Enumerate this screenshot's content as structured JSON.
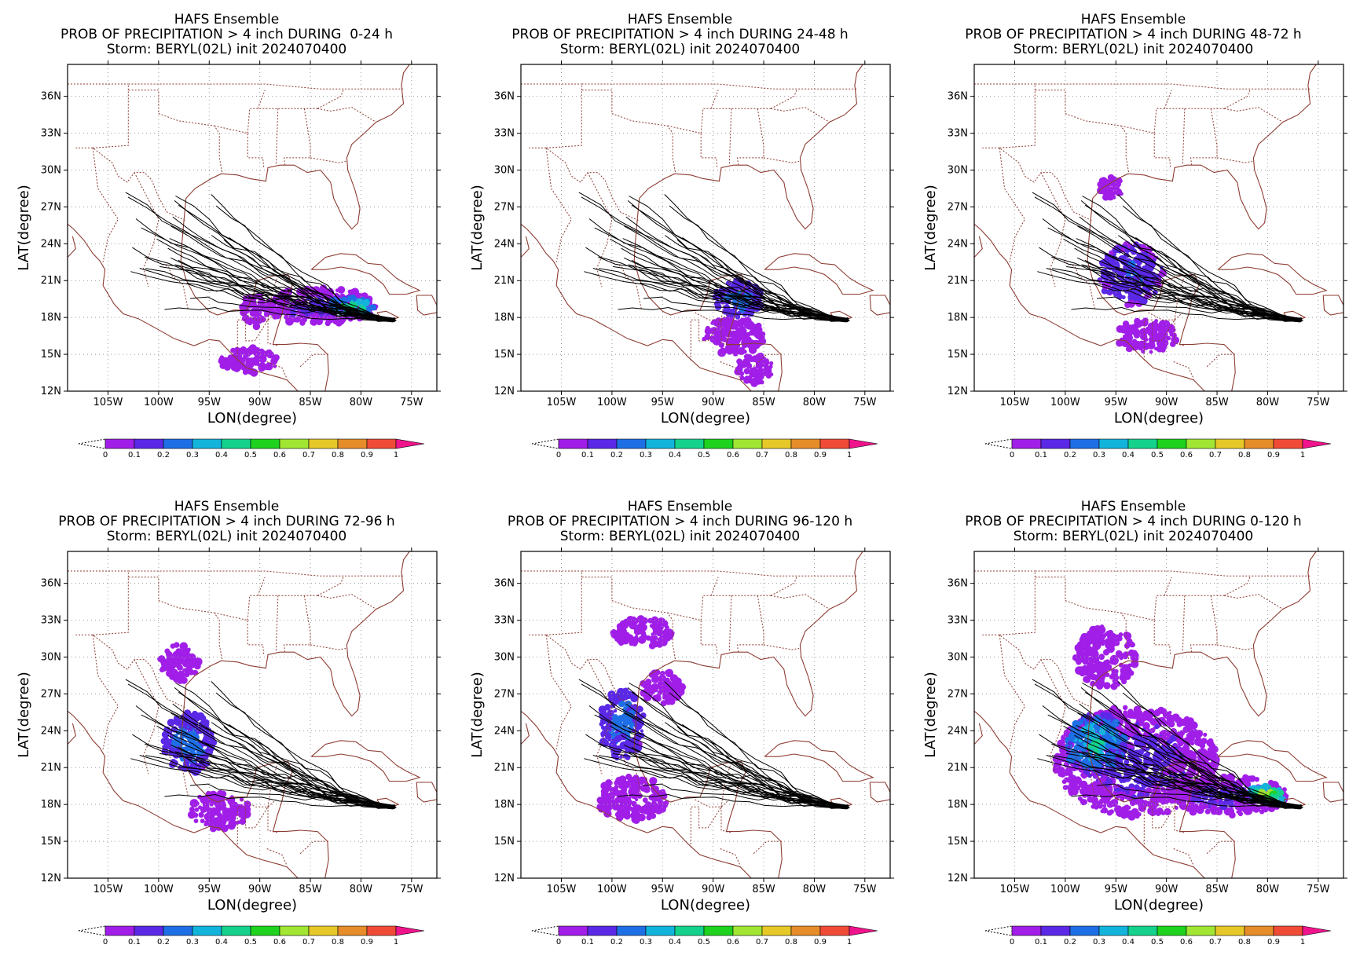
{
  "figure": {
    "panels": [
      {
        "line1": "HAFS Ensemble",
        "line2": "PROB OF PRECIPITATION > 4 inch DURING  0-24 h",
        "line3": "Storm: BERYL(02L) init 2024070400"
      },
      {
        "line1": "HAFS Ensemble",
        "line2": "PROB OF PRECIPITATION > 4 inch DURING 24-48 h",
        "line3": "Storm: BERYL(02L) init 2024070400"
      },
      {
        "line1": "HAFS Ensemble",
        "line2": "PROB OF PRECIPITATION > 4 inch DURING 48-72 h",
        "line3": "Storm: BERYL(02L) init 2024070400"
      },
      {
        "line1": "HAFS Ensemble",
        "line2": "PROB OF PRECIPITATION > 4 inch DURING 72-96 h",
        "line3": "Storm: BERYL(02L) init 2024070400"
      },
      {
        "line1": "HAFS Ensemble",
        "line2": "PROB OF PRECIPITATION > 4 inch DURING 96-120 h",
        "line3": "Storm: BERYL(02L) init 2024070400"
      },
      {
        "line1": "HAFS Ensemble",
        "line2": "PROB OF PRECIPITATION > 4 inch DURING 0-120 h",
        "line3": "Storm: BERYL(02L) init 2024070400"
      }
    ],
    "axes": {
      "xlabel": "LON(degree)",
      "ylabel": "LAT(degree)",
      "lon_ticks": [
        -105,
        -100,
        -95,
        -90,
        -85,
        -80,
        -75
      ],
      "lon_tick_labels": [
        "105W",
        "100W",
        "95W",
        "90W",
        "85W",
        "80W",
        "75W"
      ],
      "lat_ticks": [
        12,
        15,
        18,
        21,
        24,
        27,
        30,
        33,
        36
      ],
      "lat_tick_labels": [
        "12N",
        "15N",
        "18N",
        "21N",
        "24N",
        "27N",
        "30N",
        "33N",
        "36N"
      ],
      "lon_range": [
        -109,
        -72.5
      ],
      "lat_range": [
        12,
        38.6
      ],
      "grid": true
    },
    "colorbar": {
      "labels": [
        "0",
        "0.1",
        "0.2",
        "0.3",
        "0.4",
        "0.5",
        "0.6",
        "0.7",
        "0.8",
        "0.9",
        "1"
      ],
      "colors": [
        "#a01ee8",
        "#5a28e6",
        "#1e6ee6",
        "#12b4dc",
        "#14d28c",
        "#1ed21e",
        "#a0e632",
        "#e6c828",
        "#e68c28",
        "#f04b37",
        "#f0148c"
      ]
    },
    "colors": {
      "coastline": "#8c3c32",
      "track": "#000000",
      "grid": "#9a9a9a"
    }
  },
  "chart_data": {
    "type": "heatmap",
    "description_units": "probability (0-1) of precipitation exceeding 4 inch; longitude (deg, negative = W) / latitude (deg N)",
    "panels": [
      {
        "period": "0-24 h",
        "regions": [
          {
            "lon": -84,
            "lat": 18.9,
            "rlon": 5.5,
            "rlat": 1.5,
            "prob": 0.1
          },
          {
            "lon": -81,
            "lat": 18.9,
            "rlon": 2.5,
            "rlat": 0.7,
            "prob": 0.4
          },
          {
            "lon": -90.5,
            "lat": 18.6,
            "rlon": 1.3,
            "rlat": 1.4,
            "prob": 0.05
          },
          {
            "lon": -91,
            "lat": 14.5,
            "rlon": 3,
            "rlat": 1.0,
            "prob": 0.05
          }
        ]
      },
      {
        "period": "24-48 h",
        "regions": [
          {
            "lon": -87.5,
            "lat": 19.5,
            "rlon": 2.5,
            "rlat": 1.5,
            "prob": 0.2
          },
          {
            "lon": -88,
            "lat": 16.5,
            "rlon": 3,
            "rlat": 1.5,
            "prob": 0.05
          },
          {
            "lon": -86,
            "lat": 13.8,
            "rlon": 2,
            "rlat": 1.2,
            "prob": 0.05
          }
        ]
      },
      {
        "period": "48-72 h",
        "regions": [
          {
            "lon": -93.5,
            "lat": 21.5,
            "rlon": 3.2,
            "rlat": 2.5,
            "prob": 0.15
          },
          {
            "lon": -95.5,
            "lat": 28.5,
            "rlon": 1.2,
            "rlat": 1.0,
            "prob": 0.05
          },
          {
            "lon": -92,
            "lat": 16.5,
            "rlon": 3,
            "rlat": 1.4,
            "prob": 0.05
          }
        ]
      },
      {
        "period": "72-96 h",
        "regions": [
          {
            "lon": -97,
            "lat": 23,
            "rlon": 2.5,
            "rlat": 2.5,
            "prob": 0.2
          },
          {
            "lon": -98,
            "lat": 29.5,
            "rlon": 2,
            "rlat": 1.5,
            "prob": 0.05
          },
          {
            "lon": -94,
            "lat": 17.5,
            "rlon": 3,
            "rlat": 1.5,
            "prob": 0.05
          }
        ]
      },
      {
        "period": "96-120 h",
        "regions": [
          {
            "lon": -99,
            "lat": 24.5,
            "rlon": 2.2,
            "rlat": 2.8,
            "prob": 0.2
          },
          {
            "lon": -95,
            "lat": 27.5,
            "rlon": 2,
            "rlat": 1.3,
            "prob": 0.05
          },
          {
            "lon": -98,
            "lat": 18.5,
            "rlon": 3.5,
            "rlat": 1.8,
            "prob": 0.05
          },
          {
            "lon": -97,
            "lat": 32,
            "rlon": 3,
            "rlat": 1.2,
            "prob": 0.05
          }
        ]
      },
      {
        "period": "0-120 h",
        "regions": [
          {
            "lon": -93,
            "lat": 21.5,
            "rlon": 8,
            "rlat": 4.5,
            "prob": 0.1
          },
          {
            "lon": -97,
            "lat": 23,
            "rlon": 3,
            "rlat": 2.5,
            "prob": 0.3
          },
          {
            "lon": -84,
            "lat": 18.7,
            "rlon": 6,
            "rlat": 1.6,
            "prob": 0.1
          },
          {
            "lon": -80,
            "lat": 18.8,
            "rlon": 2,
            "rlat": 0.7,
            "prob": 0.5
          },
          {
            "lon": -96,
            "lat": 30,
            "rlon": 3,
            "rlat": 2.5,
            "prob": 0.05
          }
        ]
      }
    ]
  }
}
